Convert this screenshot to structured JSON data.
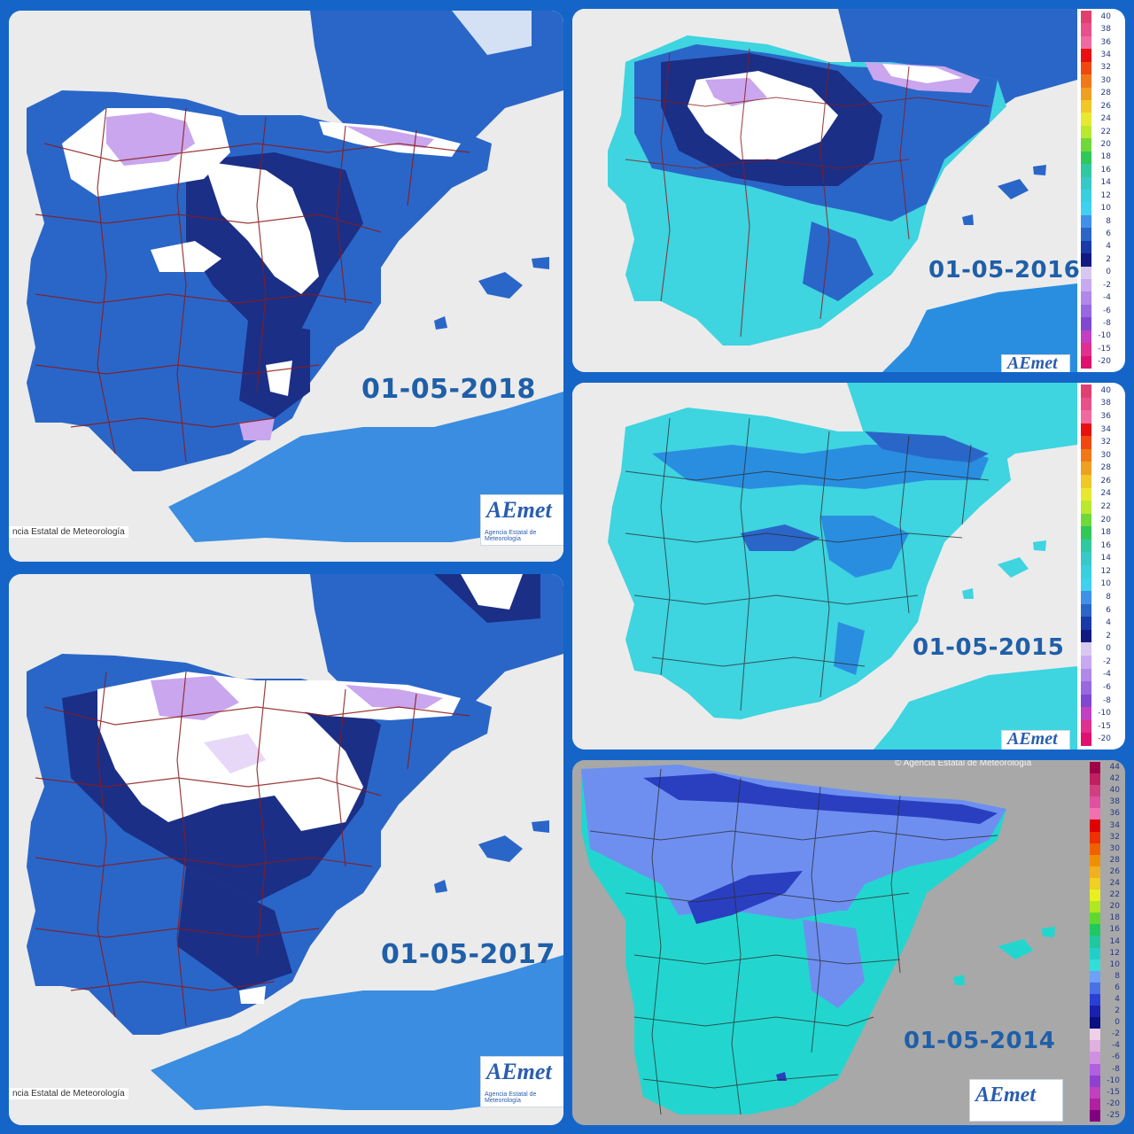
{
  "maps": [
    {
      "id": "p2018",
      "date": "01-05-2018",
      "credit": "ncia Estatal de Meteorología",
      "logo": "AEmet",
      "logo_sub": "Agencia Estatal de Meteorología",
      "dominant_colors": [
        "#2a66c8",
        "#1b2f86",
        "#ffffff",
        "#b48ee6"
      ]
    },
    {
      "id": "p2017",
      "date": "01-05-2017",
      "credit": "ncia Estatal de Meteorología",
      "logo": "AEmet",
      "logo_sub": "Agencia Estatal de Meteorología",
      "dominant_colors": [
        "#2a66c8",
        "#1b2f86",
        "#ffffff",
        "#b48ee6"
      ]
    },
    {
      "id": "p2016",
      "date": "01-05-2016",
      "logo": "AEmet",
      "dominant_colors": [
        "#3ed4e0",
        "#2a66c8",
        "#1b2f86",
        "#ffffff"
      ]
    },
    {
      "id": "p2015",
      "date": "01-05-2015",
      "logo": "AEmet",
      "dominant_colors": [
        "#3ed4e0",
        "#2a8ee0",
        "#2a66c8"
      ]
    },
    {
      "id": "p2014",
      "date": "01-05-2014",
      "credit": "© Agencia Estatal de Meteorología",
      "logo": "AEmet",
      "dominant_colors": [
        "#22d6cf",
        "#6e8ff0",
        "#2a3fc0"
      ]
    }
  ],
  "legend_a": {
    "labels": [
      "40",
      "38",
      "36",
      "34",
      "32",
      "30",
      "28",
      "26",
      "24",
      "22",
      "20",
      "18",
      "16",
      "14",
      "12",
      "10",
      "8",
      "6",
      "4",
      "2",
      "0",
      "-2",
      "-4",
      "-6",
      "-8",
      "-10",
      "-15",
      "-20"
    ],
    "colors": [
      "#e04070",
      "#e8508a",
      "#f06aa0",
      "#e81010",
      "#f04810",
      "#f07818",
      "#f0a020",
      "#f0c828",
      "#e8e830",
      "#b8e830",
      "#70d838",
      "#30c858",
      "#30c8a0",
      "#38c8c8",
      "#38d0e0",
      "#40d0f0",
      "#4090e8",
      "#2a66c8",
      "#1a3aa8",
      "#101a80",
      "#d8c8f0",
      "#c8a8f0",
      "#b088e8",
      "#9868e0",
      "#8048d0",
      "#c040c0",
      "#e03090",
      "#e01070"
    ]
  },
  "legend_b": {
    "labels": [
      "44",
      "42",
      "40",
      "38",
      "36",
      "34",
      "32",
      "30",
      "28",
      "26",
      "24",
      "22",
      "20",
      "18",
      "16",
      "14",
      "12",
      "10",
      "8",
      "6",
      "4",
      "2",
      "0",
      "-2",
      "-4",
      "-6",
      "-8",
      "-10",
      "-15",
      "-20",
      "-25"
    ],
    "colors": [
      "#a0004a",
      "#c02060",
      "#d04080",
      "#e050a0",
      "#f070b0",
      "#e00000",
      "#f03000",
      "#f06000",
      "#f09000",
      "#f0b020",
      "#f0d020",
      "#e8f020",
      "#b0e820",
      "#60d830",
      "#20c860",
      "#20c8a0",
      "#20d0c8",
      "#30e0d8",
      "#6ea0f8",
      "#4a70e8",
      "#2840d8",
      "#1a20b0",
      "#0a1080",
      "#f0d0e8",
      "#e0b0e0",
      "#d090e0",
      "#b060e0",
      "#9040d0",
      "#c040c0",
      "#b020a0",
      "#800080"
    ]
  }
}
